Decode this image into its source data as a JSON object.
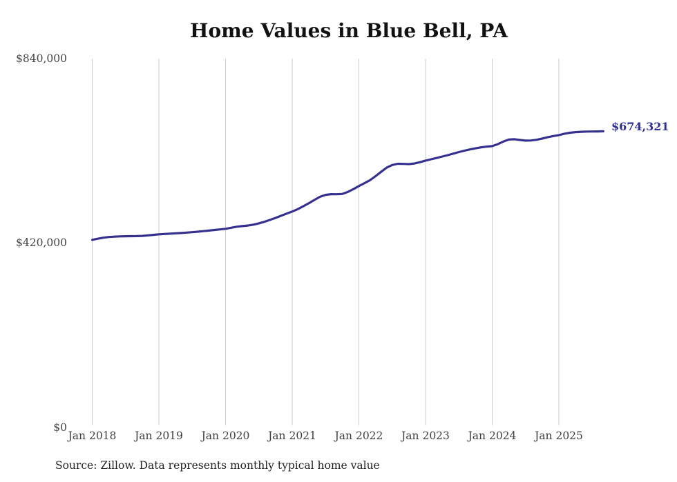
{
  "title": "Home Values in Blue Bell, PA",
  "source_note": "Source: Zillow. Data represents monthly typical home value",
  "colors": {
    "line": "#35318f",
    "annotation": "#2d2f92",
    "grid": "#cccccc",
    "axis_text": "#444444",
    "title_text": "#111111",
    "source_text": "#222222",
    "background": "#ffffff"
  },
  "chart_data": {
    "type": "line",
    "title": "Home Values in Blue Bell, PA",
    "xlabel": "",
    "ylabel": "",
    "x_start": "Jan 2018",
    "x_end": "Sep 2025",
    "interval": "monthly",
    "x_tick_labels": [
      "Jan 2018",
      "Jan 2019",
      "Jan 2020",
      "Jan 2021",
      "Jan 2022",
      "Jan 2023",
      "Jan 2024",
      "Jan 2025"
    ],
    "y_ticks": [
      {
        "label": "$0",
        "value": 0
      },
      {
        "label": "$420,000",
        "value": 420000
      },
      {
        "label": "$840,000",
        "value": 840000
      }
    ],
    "ylim": [
      0,
      840000
    ],
    "grid": "vertical",
    "legend": "none",
    "end_annotation": "$674,321",
    "latest_value": 674321,
    "series": [
      {
        "name": "Typical home value",
        "values": [
          427000,
          429500,
          431800,
          433400,
          434300,
          434800,
          435100,
          435300,
          435500,
          436000,
          437000,
          438300,
          439600,
          440300,
          441000,
          441800,
          442600,
          443500,
          444500,
          445600,
          446800,
          448100,
          449400,
          450800,
          452200,
          454500,
          456800,
          458300,
          459500,
          461500,
          464500,
          468200,
          472400,
          477000,
          481800,
          486700,
          491500,
          497000,
          503500,
          510500,
          518000,
          525000,
          529500,
          531000,
          530800,
          531500,
          536000,
          542500,
          549500,
          556000,
          563000,
          572000,
          582000,
          591500,
          597500,
          600300,
          600000,
          599600,
          601000,
          604000,
          607600,
          610500,
          613500,
          616800,
          620000,
          623500,
          627000,
          630200,
          633000,
          635500,
          637700,
          639400,
          640600,
          645000,
          651000,
          655500,
          656300,
          654500,
          653200,
          653500,
          655000,
          657900,
          661000,
          663500,
          665700,
          668800,
          671000,
          672500,
          673300,
          673700,
          673900,
          674100,
          674321
        ]
      }
    ]
  }
}
